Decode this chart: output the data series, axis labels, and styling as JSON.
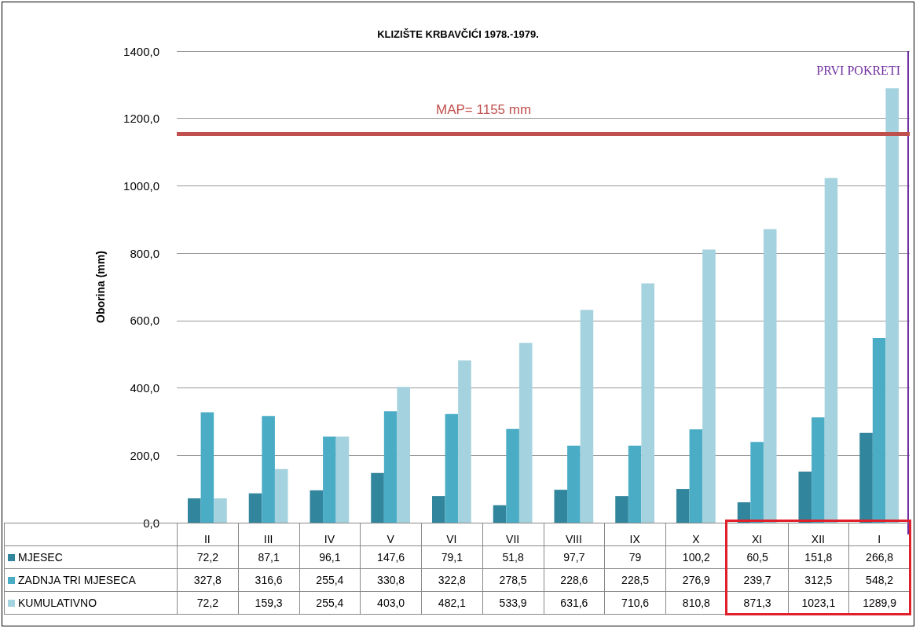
{
  "chart_data": {
    "type": "bar",
    "title": "KLIZIŠTE KRBAVČIĆI 1978.-1979.",
    "ylabel": "Oborina (mm)",
    "categories": [
      "II",
      "III",
      "IV",
      "V",
      "VI",
      "VII",
      "VIII",
      "IX",
      "X",
      "XI",
      "XII",
      "I"
    ],
    "series": [
      {
        "name": "MJESEC",
        "color": "#31859c",
        "values": [
          72.2,
          87.1,
          96.1,
          147.6,
          79.1,
          51.8,
          97.7,
          79,
          100.2,
          60.5,
          151.8,
          266.8
        ],
        "value_labels": [
          "72,2",
          "87,1",
          "96,1",
          "147,6",
          "79,1",
          "51,8",
          "97,7",
          "79",
          "100,2",
          "60,5",
          "151,8",
          "266,8"
        ]
      },
      {
        "name": "ZADNJA TRI MJESECA",
        "color": "#4bacc6",
        "values": [
          327.8,
          316.6,
          255.4,
          330.8,
          322.8,
          278.5,
          228.6,
          228.5,
          276.9,
          239.7,
          312.5,
          548.2
        ],
        "value_labels": [
          "327,8",
          "316,6",
          "255,4",
          "330,8",
          "322,8",
          "278,5",
          "228,6",
          "228,5",
          "276,9",
          "239,7",
          "312,5",
          "548,2"
        ]
      },
      {
        "name": "KUMULATIVNO",
        "color": "#a5d2df",
        "values": [
          72.2,
          159.3,
          255.4,
          403.0,
          482.1,
          533.9,
          631.6,
          710.6,
          810.8,
          871.3,
          1023.1,
          1289.9
        ],
        "value_labels": [
          "72,2",
          "159,3",
          "255,4",
          "403,0",
          "482,1",
          "533,9",
          "631,6",
          "710,6",
          "810,8",
          "871,3",
          "1023,1",
          "1289,9"
        ]
      }
    ],
    "ylim": [
      0,
      1400
    ],
    "yticks": [
      {
        "value": 0,
        "label": "0,0"
      },
      {
        "value": 200,
        "label": "200,0"
      },
      {
        "value": 400,
        "label": "400,0"
      },
      {
        "value": 600,
        "label": "600,0"
      },
      {
        "value": 800,
        "label": "800,0"
      },
      {
        "value": 1000,
        "label": "1000,0"
      },
      {
        "value": 1200,
        "label": "1200,0"
      },
      {
        "value": 1400,
        "label": "1400,0"
      }
    ],
    "grid": "y",
    "legend": "bottom",
    "ref_lines": [
      {
        "axis": "y",
        "value": 1155,
        "label": "MAP= 1155 mm",
        "color": "#c0504d"
      },
      {
        "axis": "x",
        "value": "I",
        "label": "PRVI POKRETI",
        "color": "#7030a0"
      }
    ]
  }
}
